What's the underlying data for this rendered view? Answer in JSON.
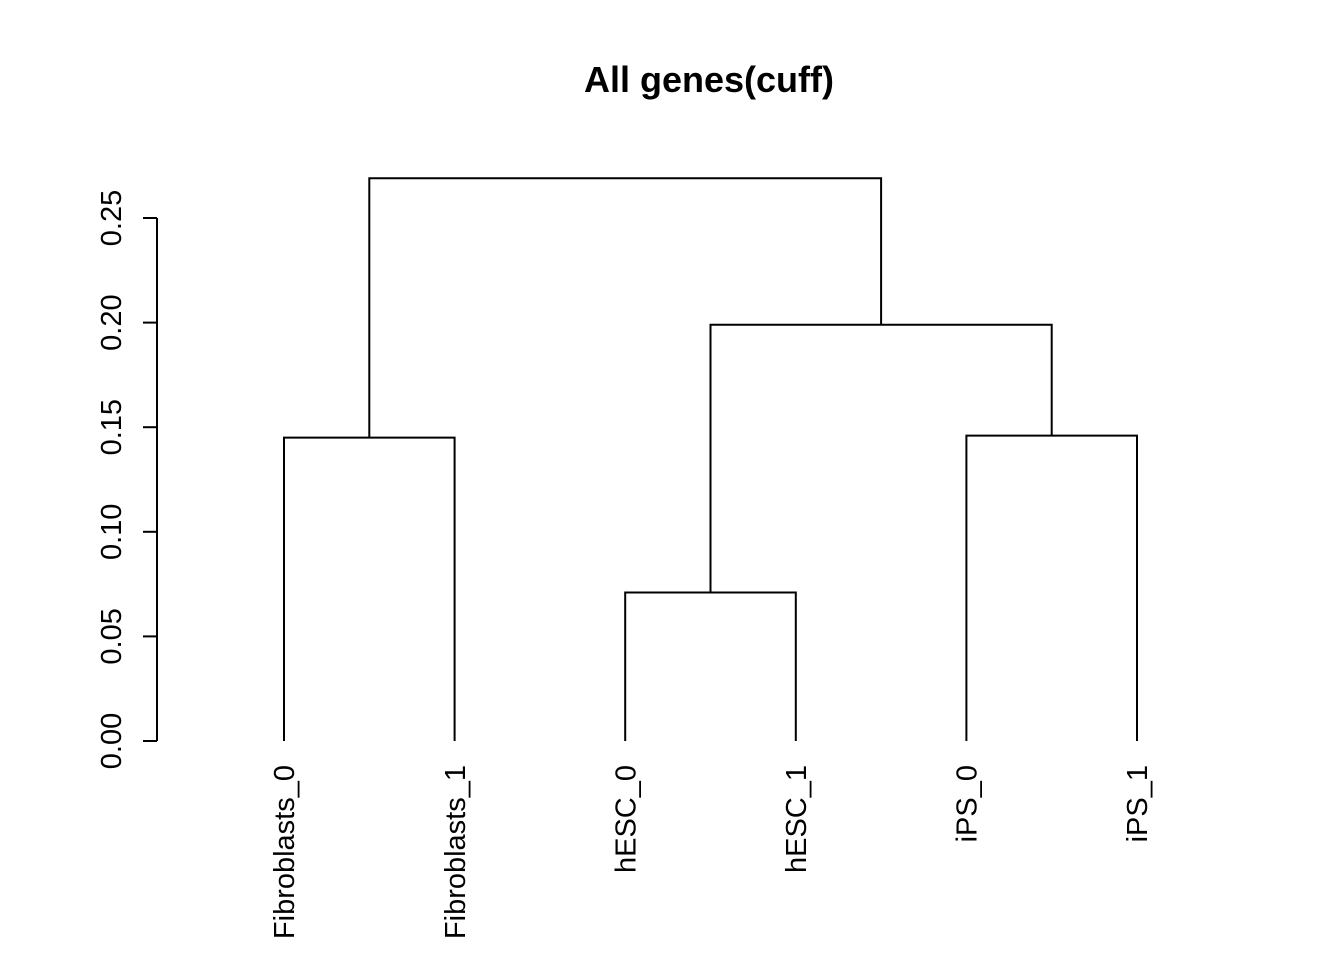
{
  "chart_data": {
    "type": "dendrogram",
    "title": "All genes(cuff)",
    "xlabel": "",
    "ylabel": "",
    "ylim": [
      0,
      0.27
    ],
    "yticks": [
      0.0,
      0.05,
      0.1,
      0.15,
      0.2,
      0.25
    ],
    "ytick_labels": [
      "0.00",
      "0.05",
      "0.10",
      "0.15",
      "0.20",
      "0.25"
    ],
    "grid": false,
    "leaves": [
      "Fibroblasts_0",
      "Fibroblasts_1",
      "hESC_0",
      "hESC_1",
      "iPS_0",
      "iPS_1"
    ],
    "merges": [
      {
        "left": "Fibroblasts_0",
        "right": "Fibroblasts_1",
        "height": 0.145
      },
      {
        "left": "hESC_0",
        "right": "hESC_1",
        "height": 0.071
      },
      {
        "left": "iPS_0",
        "right": "iPS_1",
        "height": 0.146
      },
      {
        "left": "hESC_0,hESC_1",
        "right": "iPS_0,iPS_1",
        "height": 0.199
      },
      {
        "left": "Fibroblasts_0,Fibroblasts_1",
        "right": "hESC_0,hESC_1,iPS_0,iPS_1",
        "height": 0.269
      }
    ],
    "line_color": "#000000"
  }
}
